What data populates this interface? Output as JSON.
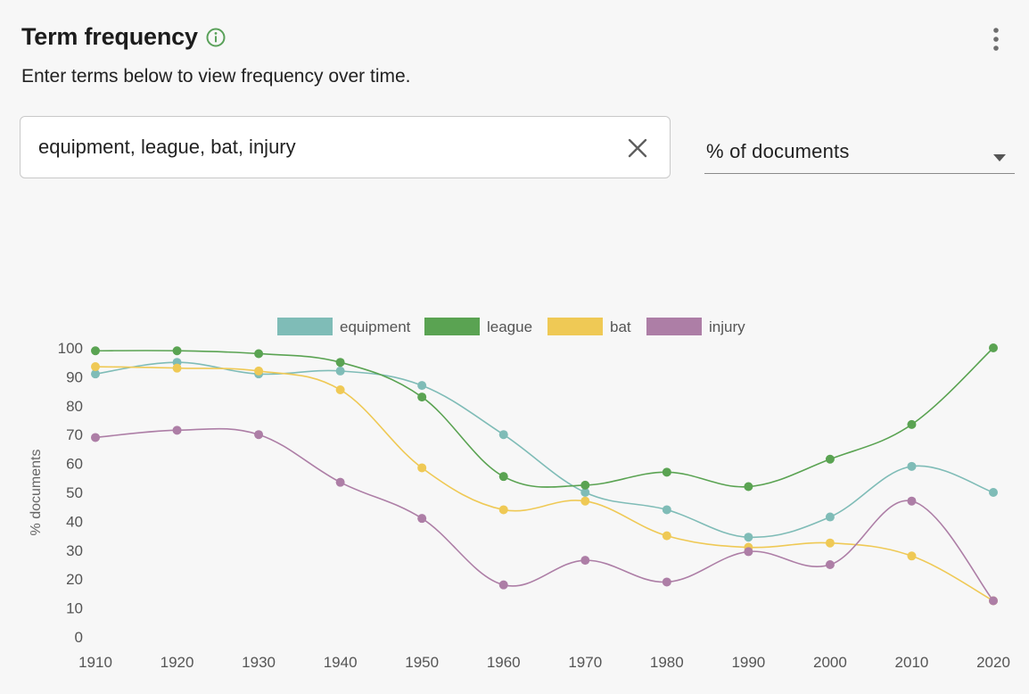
{
  "header": {
    "title": "Term frequency",
    "subtitle": "Enter terms below to view frequency over time.",
    "info_icon": "info-circle-icon",
    "menu_icon": "more-vertical-icon"
  },
  "search": {
    "value": "equipment, league, bat, injury",
    "clear_icon": "close-icon"
  },
  "metric_select": {
    "selected": "% of documents",
    "arrow_icon": "caret-down-icon"
  },
  "colors": {
    "accent_green": "#5aa15a",
    "equipment": "#7fbcb7",
    "league": "#5aa352",
    "bat": "#efc955",
    "injury": "#ad7ea6"
  },
  "chart_data": {
    "type": "line",
    "smooth": true,
    "ylabel": "% documents",
    "xlabel": "",
    "ylim": [
      0,
      100
    ],
    "yticks": [
      0,
      10,
      20,
      30,
      40,
      50,
      60,
      70,
      80,
      90,
      100
    ],
    "x": [
      1910,
      1920,
      1930,
      1940,
      1950,
      1960,
      1970,
      1980,
      1990,
      2000,
      2010,
      2020
    ],
    "legend_position": "top",
    "grid": false,
    "series": [
      {
        "name": "equipment",
        "color": "#7fbcb7",
        "values": [
          91,
          95,
          91,
          92,
          87,
          70,
          50,
          44,
          34.5,
          41.5,
          59,
          50
        ]
      },
      {
        "name": "league",
        "color": "#5aa352",
        "values": [
          99,
          99,
          98,
          95,
          83,
          55.5,
          52.5,
          57,
          52,
          61.5,
          73.5,
          100
        ]
      },
      {
        "name": "bat",
        "color": "#efc955",
        "values": [
          93.5,
          93,
          92,
          85.5,
          58.5,
          44,
          47,
          35,
          31,
          32.5,
          28,
          12.5
        ]
      },
      {
        "name": "injury",
        "color": "#ad7ea6",
        "values": [
          69,
          71.5,
          70,
          53.5,
          41,
          18,
          26.5,
          19,
          29.5,
          25,
          47,
          12.5
        ]
      }
    ]
  }
}
